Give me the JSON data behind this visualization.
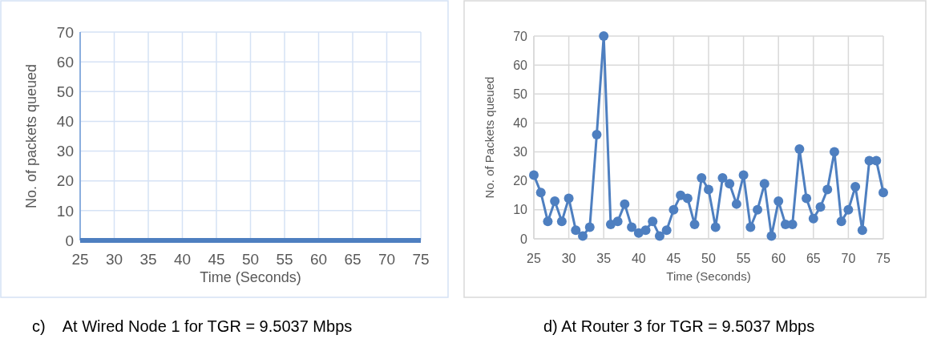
{
  "chart_data": [
    {
      "type": "line",
      "xlabel": "Time (Seconds)",
      "ylabel": "No. of packets queued",
      "x": [
        25,
        26,
        27,
        28,
        29,
        30,
        31,
        32,
        33,
        34,
        35,
        36,
        37,
        38,
        39,
        40,
        41,
        42,
        43,
        44,
        45,
        46,
        47,
        48,
        49,
        50,
        51,
        52,
        53,
        54,
        55,
        56,
        57,
        58,
        59,
        60,
        61,
        62,
        63,
        64,
        65,
        66,
        67,
        68,
        69,
        70,
        71,
        72,
        73,
        74,
        75
      ],
      "series": [
        {
          "color": "#4e7fc0",
          "values": [
            0,
            0,
            0,
            0,
            0,
            0,
            0,
            0,
            0,
            0,
            0,
            0,
            0,
            0,
            0,
            0,
            0,
            0,
            0,
            0,
            0,
            0,
            0,
            0,
            0,
            0,
            0,
            0,
            0,
            0,
            0,
            0,
            0,
            0,
            0,
            0,
            0,
            0,
            0,
            0,
            0,
            0,
            0,
            0,
            0,
            0,
            0,
            0,
            0,
            0,
            0
          ]
        }
      ],
      "xlim": [
        25,
        75
      ],
      "xticks": [
        25,
        30,
        35,
        40,
        45,
        50,
        55,
        60,
        65,
        70,
        75
      ],
      "ylim": [
        0,
        70
      ],
      "yticks": [
        0,
        10,
        20,
        30,
        40,
        50,
        60,
        70
      ],
      "grid": true,
      "marker": "none",
      "annotations": [
        "c)    At Wired Node 1 for TGR = 9.5037 Mbps"
      ]
    },
    {
      "type": "line",
      "xlabel": "Time (Seconds)",
      "ylabel": "No. of Packets queued",
      "x": [
        25,
        26,
        27,
        28,
        29,
        30,
        31,
        32,
        33,
        34,
        35,
        36,
        37,
        38,
        39,
        40,
        41,
        42,
        43,
        44,
        45,
        46,
        47,
        48,
        49,
        50,
        51,
        52,
        53,
        54,
        55,
        56,
        57,
        58,
        59,
        60,
        61,
        62,
        63,
        64,
        65,
        66,
        67,
        68,
        69,
        70,
        71,
        72,
        73,
        74,
        75
      ],
      "series": [
        {
          "color": "#4e7fc0",
          "values": [
            22,
            16,
            6,
            13,
            6,
            14,
            3,
            1,
            4,
            36,
            70,
            5,
            6,
            12,
            4,
            2,
            3,
            6,
            1,
            3,
            10,
            15,
            14,
            5,
            21,
            17,
            4,
            21,
            19,
            12,
            22,
            4,
            10,
            19,
            1,
            13,
            5,
            5,
            31,
            14,
            7,
            11,
            17,
            30,
            6,
            10,
            18,
            3,
            27,
            27,
            16
          ]
        }
      ],
      "xlim": [
        25,
        75
      ],
      "xticks": [
        25,
        30,
        35,
        40,
        45,
        50,
        55,
        60,
        65,
        70,
        75
      ],
      "ylim": [
        0,
        70
      ],
      "yticks": [
        0,
        10,
        20,
        30,
        40,
        50,
        60,
        70
      ],
      "grid": true,
      "marker": "circle",
      "annotations": [
        "d) At Router 3 for TGR = 9.5037 Mbps"
      ]
    }
  ]
}
